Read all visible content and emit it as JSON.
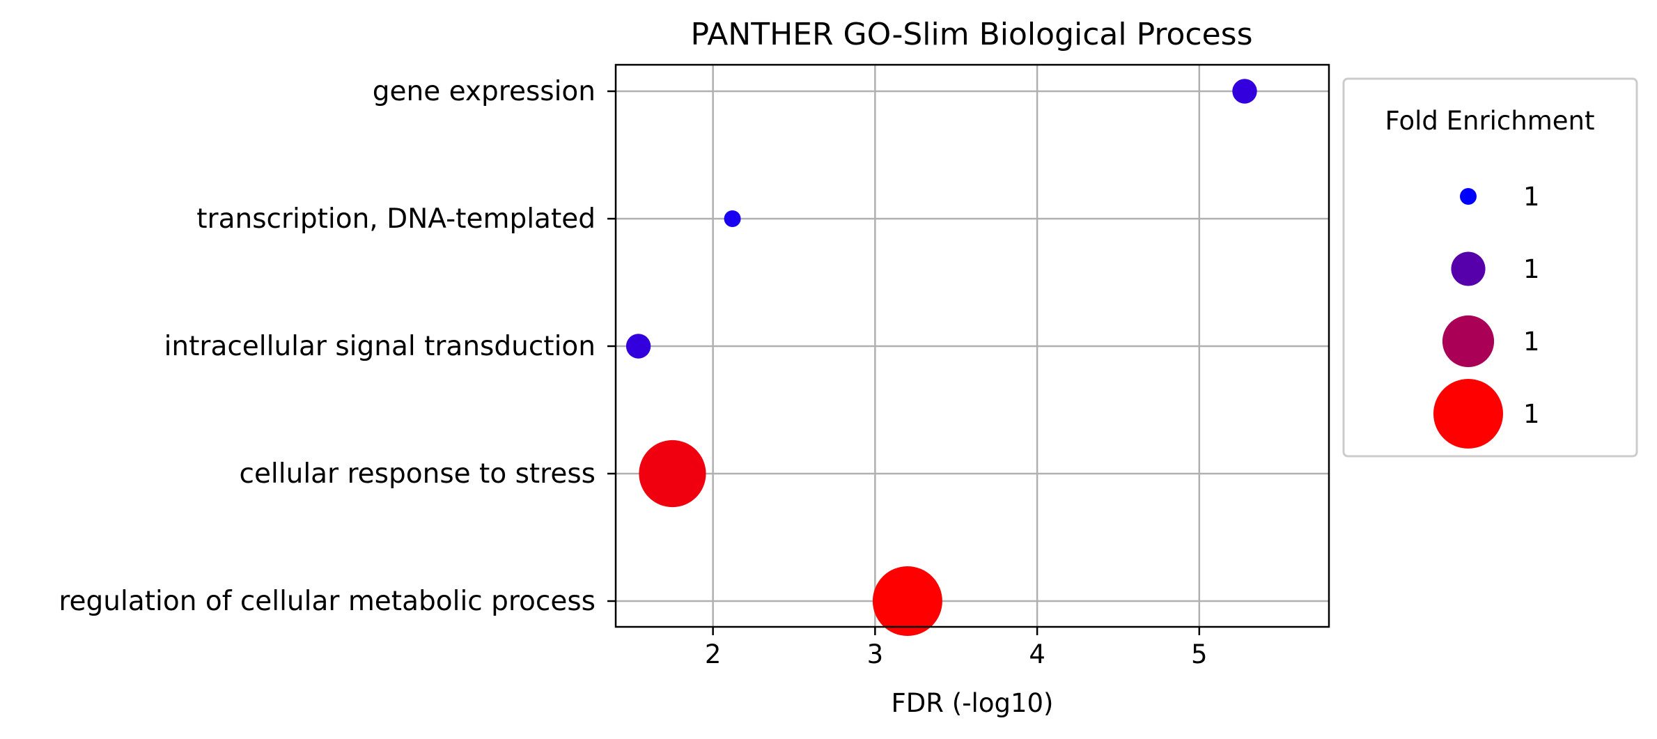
{
  "chart_data": {
    "type": "scatter",
    "title": "PANTHER GO-Slim Biological Process",
    "xlabel": "FDR (-log10)",
    "ylabel": "",
    "xlim": [
      1.4,
      5.8
    ],
    "xticks": [
      2,
      3,
      4,
      5
    ],
    "xtick_labels": [
      "2",
      "3",
      "4",
      "5"
    ],
    "grid": true,
    "categories": [
      "gene expression",
      "transcription, DNA-templated",
      "intracellular signal transduction",
      "cellular response to stress",
      "regulation of cellular metabolic process"
    ],
    "points": [
      {
        "category": "gene expression",
        "x": 5.28,
        "fold_enrichment_level": 0.15,
        "color": "#3300dd"
      },
      {
        "category": "transcription, DNA-templated",
        "x": 2.12,
        "fold_enrichment_level": 0.0,
        "color": "#1a00f0"
      },
      {
        "category": "intracellular signal transduction",
        "x": 1.54,
        "fold_enrichment_level": 0.15,
        "color": "#3300dd"
      },
      {
        "category": "cellular response to stress",
        "x": 1.75,
        "fold_enrichment_level": 0.95,
        "color": "#f0000f"
      },
      {
        "category": "regulation of cellular metabolic process",
        "x": 3.2,
        "fold_enrichment_level": 1.0,
        "color": "#ff0000"
      }
    ],
    "legend": {
      "title": "Fold Enrichment",
      "placement": "outside-right",
      "entries": [
        {
          "label": "1",
          "level": 0.0,
          "color": "#0000ff"
        },
        {
          "label": "1",
          "level": 0.33,
          "color": "#5500aa"
        },
        {
          "label": "1",
          "level": 0.66,
          "color": "#aa0055"
        },
        {
          "label": "1",
          "level": 1.0,
          "color": "#ff0000"
        }
      ]
    }
  }
}
